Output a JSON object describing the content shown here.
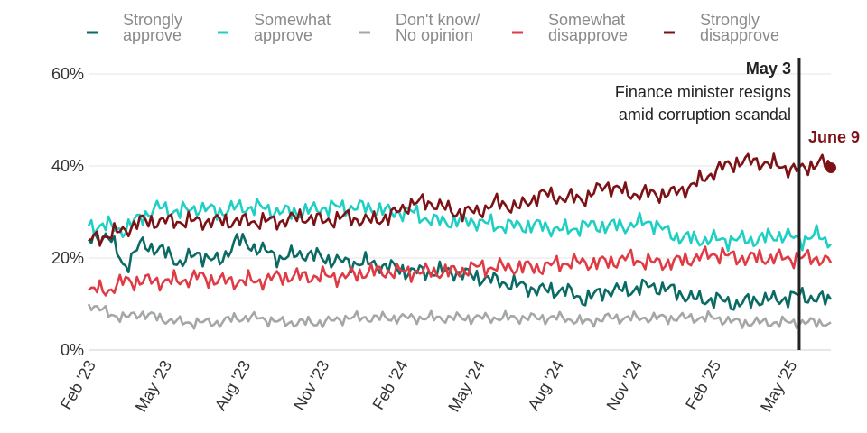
{
  "chart_data": {
    "type": "line",
    "title": "",
    "xlabel": "",
    "ylabel": "",
    "ylim": [
      0,
      60
    ],
    "y_ticks": [
      {
        "value": 0,
        "label": "0%"
      },
      {
        "value": 20,
        "label": "20%"
      },
      {
        "value": 40,
        "label": "40%"
      },
      {
        "value": 60,
        "label": "60%"
      }
    ],
    "x_range": [
      "2023-01-23",
      "2025-06-09"
    ],
    "x_ticks": [
      {
        "date": "2023-02-01",
        "label": "Feb '23"
      },
      {
        "date": "2023-05-01",
        "label": "May '23"
      },
      {
        "date": "2023-08-01",
        "label": "Aug '23"
      },
      {
        "date": "2023-11-01",
        "label": "Nov '23"
      },
      {
        "date": "2024-02-01",
        "label": "Feb '24"
      },
      {
        "date": "2024-05-01",
        "label": "May '24"
      },
      {
        "date": "2024-08-01",
        "label": "Aug '24"
      },
      {
        "date": "2024-11-01",
        "label": "Nov '24"
      },
      {
        "date": "2025-02-01",
        "label": "Feb '25"
      },
      {
        "date": "2025-05-01",
        "label": "May '25"
      }
    ],
    "grid": true,
    "legend_position": "top",
    "series": [
      {
        "name_lines": [
          "Strongly",
          "approve"
        ],
        "color": "#0b6b64",
        "points": [
          [
            "2023-01-23",
            24
          ],
          [
            "2023-02-15",
            25
          ],
          [
            "2023-03-06",
            18
          ],
          [
            "2023-03-25",
            23
          ],
          [
            "2023-04-15",
            22
          ],
          [
            "2023-05-10",
            19
          ],
          [
            "2023-06-01",
            21
          ],
          [
            "2023-06-25",
            19
          ],
          [
            "2023-07-15",
            24
          ],
          [
            "2023-08-10",
            22
          ],
          [
            "2023-09-05",
            20
          ],
          [
            "2023-10-01",
            21
          ],
          [
            "2023-10-25",
            20
          ],
          [
            "2023-11-20",
            19
          ],
          [
            "2023-12-15",
            19
          ],
          [
            "2024-01-10",
            18
          ],
          [
            "2024-02-05",
            17
          ],
          [
            "2024-03-01",
            17
          ],
          [
            "2024-03-25",
            17
          ],
          [
            "2024-04-20",
            16
          ],
          [
            "2024-05-15",
            15
          ],
          [
            "2024-06-10",
            14
          ],
          [
            "2024-07-05",
            13
          ],
          [
            "2024-08-01",
            13
          ],
          [
            "2024-08-25",
            11
          ],
          [
            "2024-09-20",
            13
          ],
          [
            "2024-10-15",
            13
          ],
          [
            "2024-11-10",
            14
          ],
          [
            "2024-12-05",
            13
          ],
          [
            "2025-01-01",
            11
          ],
          [
            "2025-01-25",
            11
          ],
          [
            "2025-02-20",
            10
          ],
          [
            "2025-03-15",
            11
          ],
          [
            "2025-04-10",
            11
          ],
          [
            "2025-05-05",
            12
          ],
          [
            "2025-05-25",
            11
          ],
          [
            "2025-06-09",
            11
          ]
        ],
        "end_value": 11
      },
      {
        "name_lines": [
          "Somewhat",
          "approve"
        ],
        "color": "#1fcfc4",
        "points": [
          [
            "2023-01-23",
            27
          ],
          [
            "2023-02-15",
            27
          ],
          [
            "2023-03-06",
            26
          ],
          [
            "2023-03-25",
            29
          ],
          [
            "2023-04-15",
            31
          ],
          [
            "2023-05-10",
            30
          ],
          [
            "2023-06-01",
            31
          ],
          [
            "2023-06-25",
            30
          ],
          [
            "2023-07-15",
            31
          ],
          [
            "2023-08-10",
            31
          ],
          [
            "2023-09-05",
            30
          ],
          [
            "2023-10-01",
            30
          ],
          [
            "2023-10-25",
            31
          ],
          [
            "2023-11-20",
            31
          ],
          [
            "2023-12-15",
            31
          ],
          [
            "2024-01-10",
            30
          ],
          [
            "2024-02-05",
            30
          ],
          [
            "2024-03-01",
            28
          ],
          [
            "2024-03-25",
            28
          ],
          [
            "2024-04-20",
            28
          ],
          [
            "2024-05-15",
            27
          ],
          [
            "2024-06-10",
            27
          ],
          [
            "2024-07-05",
            27
          ],
          [
            "2024-08-01",
            26
          ],
          [
            "2024-08-25",
            27
          ],
          [
            "2024-09-20",
            27
          ],
          [
            "2024-10-15",
            27
          ],
          [
            "2024-11-10",
            28
          ],
          [
            "2024-12-05",
            25
          ],
          [
            "2025-01-01",
            24
          ],
          [
            "2025-01-25",
            24
          ],
          [
            "2025-02-20",
            24
          ],
          [
            "2025-03-15",
            24
          ],
          [
            "2025-04-10",
            25
          ],
          [
            "2025-05-05",
            24
          ],
          [
            "2025-05-25",
            25
          ],
          [
            "2025-06-09",
            23
          ]
        ],
        "end_value": 23
      },
      {
        "name_lines": [
          "Don't know/",
          "No opinion"
        ],
        "color": "#a3a8a6",
        "points": [
          [
            "2023-01-23",
            10
          ],
          [
            "2023-02-15",
            8
          ],
          [
            "2023-03-06",
            7
          ],
          [
            "2023-03-25",
            8
          ],
          [
            "2023-04-15",
            7
          ],
          [
            "2023-05-10",
            6
          ],
          [
            "2023-06-01",
            6
          ],
          [
            "2023-06-25",
            6
          ],
          [
            "2023-07-15",
            7
          ],
          [
            "2023-08-10",
            7
          ],
          [
            "2023-09-05",
            6
          ],
          [
            "2023-10-01",
            6
          ],
          [
            "2023-10-25",
            6
          ],
          [
            "2023-11-20",
            7
          ],
          [
            "2023-12-15",
            7
          ],
          [
            "2024-01-10",
            7
          ],
          [
            "2024-02-05",
            7
          ],
          [
            "2024-03-01",
            7
          ],
          [
            "2024-03-25",
            7
          ],
          [
            "2024-04-20",
            7
          ],
          [
            "2024-05-15",
            7
          ],
          [
            "2024-06-10",
            7
          ],
          [
            "2024-07-05",
            7
          ],
          [
            "2024-08-01",
            7
          ],
          [
            "2024-08-25",
            6
          ],
          [
            "2024-09-20",
            7
          ],
          [
            "2024-10-15",
            7
          ],
          [
            "2024-11-10",
            7
          ],
          [
            "2024-12-05",
            7
          ],
          [
            "2025-01-01",
            7
          ],
          [
            "2025-01-25",
            7
          ],
          [
            "2025-02-20",
            6
          ],
          [
            "2025-03-15",
            6
          ],
          [
            "2025-04-10",
            6
          ],
          [
            "2025-05-05",
            6
          ],
          [
            "2025-05-25",
            6
          ],
          [
            "2025-06-09",
            6
          ]
        ],
        "end_value": 6
      },
      {
        "name_lines": [
          "Somewhat",
          "disapprove"
        ],
        "color": "#e03a45",
        "points": [
          [
            "2023-01-23",
            13
          ],
          [
            "2023-02-15",
            13
          ],
          [
            "2023-03-06",
            15
          ],
          [
            "2023-03-25",
            15
          ],
          [
            "2023-04-15",
            15
          ],
          [
            "2023-05-10",
            15
          ],
          [
            "2023-06-01",
            16
          ],
          [
            "2023-06-25",
            15
          ],
          [
            "2023-07-15",
            15
          ],
          [
            "2023-08-10",
            15
          ],
          [
            "2023-09-05",
            16
          ],
          [
            "2023-10-01",
            16
          ],
          [
            "2023-10-25",
            16
          ],
          [
            "2023-11-20",
            16
          ],
          [
            "2023-12-15",
            17
          ],
          [
            "2024-01-10",
            17
          ],
          [
            "2024-02-05",
            17
          ],
          [
            "2024-03-01",
            17
          ],
          [
            "2024-03-25",
            17
          ],
          [
            "2024-04-20",
            18
          ],
          [
            "2024-05-15",
            18
          ],
          [
            "2024-06-10",
            18
          ],
          [
            "2024-07-05",
            18
          ],
          [
            "2024-08-01",
            19
          ],
          [
            "2024-08-25",
            19
          ],
          [
            "2024-09-20",
            19
          ],
          [
            "2024-10-15",
            20
          ],
          [
            "2024-11-10",
            19
          ],
          [
            "2024-12-05",
            19
          ],
          [
            "2025-01-01",
            20
          ],
          [
            "2025-01-25",
            21
          ],
          [
            "2025-02-20",
            20
          ],
          [
            "2025-03-15",
            20
          ],
          [
            "2025-04-10",
            20
          ],
          [
            "2025-05-05",
            20
          ],
          [
            "2025-05-25",
            20
          ],
          [
            "2025-06-09",
            19
          ]
        ],
        "end_value": 19
      },
      {
        "name_lines": [
          "Strongly",
          "disapprove"
        ],
        "color": "#7d1216",
        "points": [
          [
            "2023-01-23",
            24
          ],
          [
            "2023-02-15",
            25
          ],
          [
            "2023-03-06",
            26
          ],
          [
            "2023-03-25",
            28
          ],
          [
            "2023-04-15",
            28
          ],
          [
            "2023-05-10",
            28
          ],
          [
            "2023-06-01",
            28
          ],
          [
            "2023-06-25",
            28
          ],
          [
            "2023-07-15",
            28
          ],
          [
            "2023-08-10",
            28
          ],
          [
            "2023-09-05",
            28
          ],
          [
            "2023-10-01",
            29
          ],
          [
            "2023-10-25",
            28
          ],
          [
            "2023-11-20",
            29
          ],
          [
            "2023-12-15",
            28
          ],
          [
            "2024-01-10",
            29
          ],
          [
            "2024-02-05",
            32
          ],
          [
            "2024-03-01",
            32
          ],
          [
            "2024-03-25",
            30
          ],
          [
            "2024-04-20",
            30
          ],
          [
            "2024-05-15",
            32
          ],
          [
            "2024-06-10",
            31
          ],
          [
            "2024-07-05",
            34
          ],
          [
            "2024-08-01",
            33
          ],
          [
            "2024-08-25",
            33
          ],
          [
            "2024-09-20",
            36
          ],
          [
            "2024-10-15",
            34
          ],
          [
            "2024-11-10",
            34
          ],
          [
            "2024-12-05",
            34
          ],
          [
            "2025-01-01",
            36
          ],
          [
            "2025-01-25",
            39
          ],
          [
            "2025-02-20",
            41
          ],
          [
            "2025-03-15",
            41
          ],
          [
            "2025-04-10",
            40
          ],
          [
            "2025-05-05",
            39
          ],
          [
            "2025-05-25",
            41
          ],
          [
            "2025-06-09",
            40
          ]
        ],
        "end_value": 40
      }
    ],
    "annotations": {
      "event": {
        "date": "2025-05-03",
        "label": "May 3",
        "text_lines": [
          "Finance minister resigns",
          "amid corruption scandal"
        ]
      },
      "end": {
        "date": "2025-06-09",
        "label": "June 9",
        "value": 40,
        "color": "#7d1216"
      }
    }
  }
}
